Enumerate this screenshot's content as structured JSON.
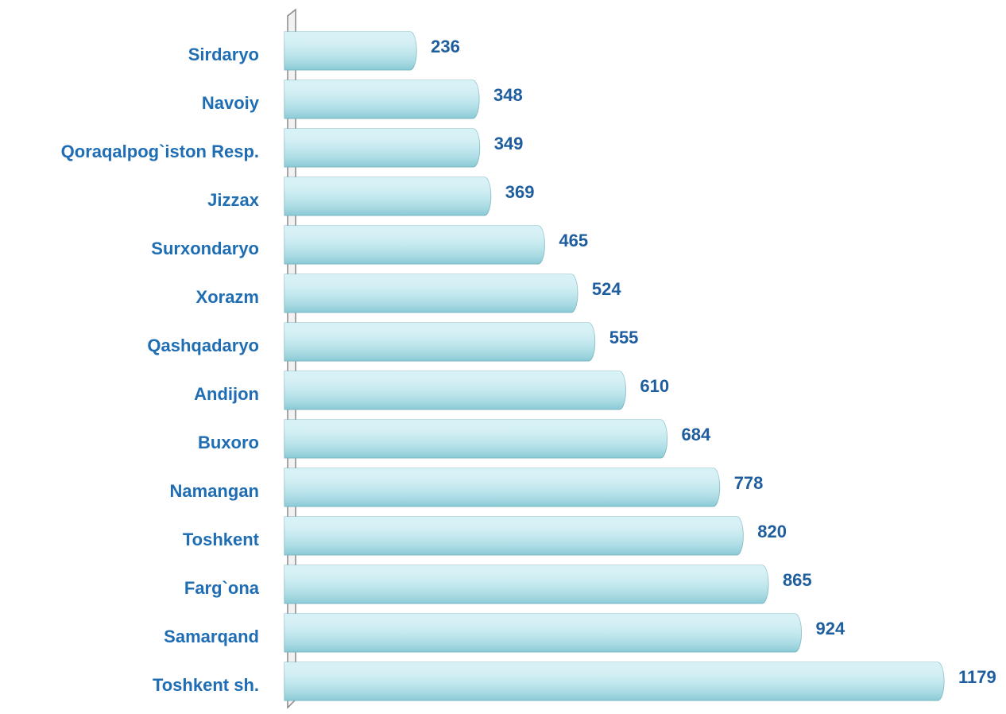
{
  "chart_data": {
    "type": "barh",
    "categories": [
      "Sirdaryo",
      "Navoiy",
      "Qoraqalpog`iston Resp.",
      "Jizzax",
      "Surxondaryo",
      "Xorazm",
      "Qashqadaryo",
      "Andijon",
      "Buxoro",
      "Namangan",
      "Toshkent",
      "Farg`ona",
      "Samarqand",
      "Toshkent sh."
    ],
    "values": [
      236,
      348,
      349,
      369,
      465,
      524,
      555,
      610,
      684,
      778,
      820,
      865,
      924,
      1179
    ],
    "color": "#a9dfe8"
  }
}
